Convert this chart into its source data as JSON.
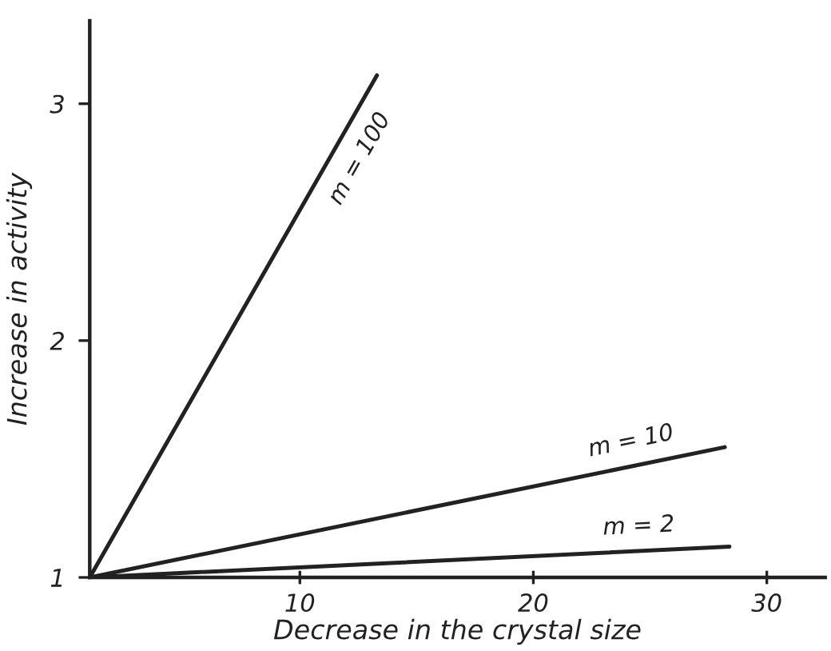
{
  "chart_data": {
    "type": "line",
    "xlabel": "Decrease in the crystal size",
    "ylabel": "Increase in activity",
    "xlim": [
      1,
      32.5
    ],
    "ylim": [
      1,
      3.35
    ],
    "xticks": [
      10,
      20,
      30
    ],
    "yticks": [
      1,
      2,
      3
    ],
    "marker": "none",
    "line_style": "solid",
    "series": [
      {
        "name": "m = 100",
        "color": "#222222",
        "x": [
          1,
          13.3
        ],
        "values": [
          1,
          3.12
        ]
      },
      {
        "name": "m = 10",
        "color": "#222222",
        "x": [
          1,
          28.2
        ],
        "values": [
          1,
          1.55
        ]
      },
      {
        "name": "m = 2",
        "color": "#222222",
        "x": [
          1,
          28.4
        ],
        "values": [
          1,
          1.13
        ]
      }
    ]
  }
}
